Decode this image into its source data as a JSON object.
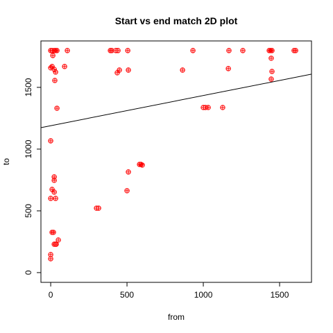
{
  "chart_data": {
    "type": "scatter",
    "title": "Start vs end match 2D plot",
    "x_label": "from",
    "y_label": "to",
    "xlim": [
      -64,
      1709
    ],
    "ylim": [
      -79,
      1876
    ],
    "xticks": [
      0,
      500,
      1000,
      1500
    ],
    "yticks": [
      0,
      500,
      1000,
      1500
    ],
    "color": "#ff0000",
    "x": [
      0,
      9,
      23,
      32,
      41,
      109,
      391,
      400,
      427,
      441,
      505,
      932,
      1168,
      1259,
      1432,
      1441,
      1450,
      1595,
      1605,
      14,
      9,
      0,
      23,
      32,
      27,
      91,
      450,
      436,
      509,
      864,
      1164,
      1445,
      1450,
      1445,
      41,
      0,
      23,
      23,
      9,
      23,
      0,
      32,
      9,
      18,
      23,
      32,
      50,
      36,
      0,
      0,
      300,
      314,
      509,
      500,
      582,
      591,
      600,
      1000,
      1032,
      1127,
      1014
    ],
    "values": [
      1798,
      1798,
      1798,
      1798,
      1798,
      1798,
      1798,
      1798,
      1798,
      1798,
      1798,
      1798,
      1798,
      1798,
      1798,
      1798,
      1798,
      1798,
      1798,
      1758,
      1669,
      1658,
      1646,
      1624,
      1556,
      1669,
      1640,
      1618,
      1640,
      1640,
      1652,
      1736,
      1629,
      1567,
      1331,
      1067,
      775,
      747,
      674,
      652,
      601,
      601,
      326,
      326,
      230,
      230,
      264,
      230,
      146,
      112,
      522,
      522,
      815,
      663,
      876,
      876,
      871,
      1337,
      1337,
      1337,
      1337
    ],
    "fit_line": {
      "x": [
        -64,
        1709
      ],
      "values": [
        1174,
        1607
      ],
      "color": "#000000"
    }
  }
}
